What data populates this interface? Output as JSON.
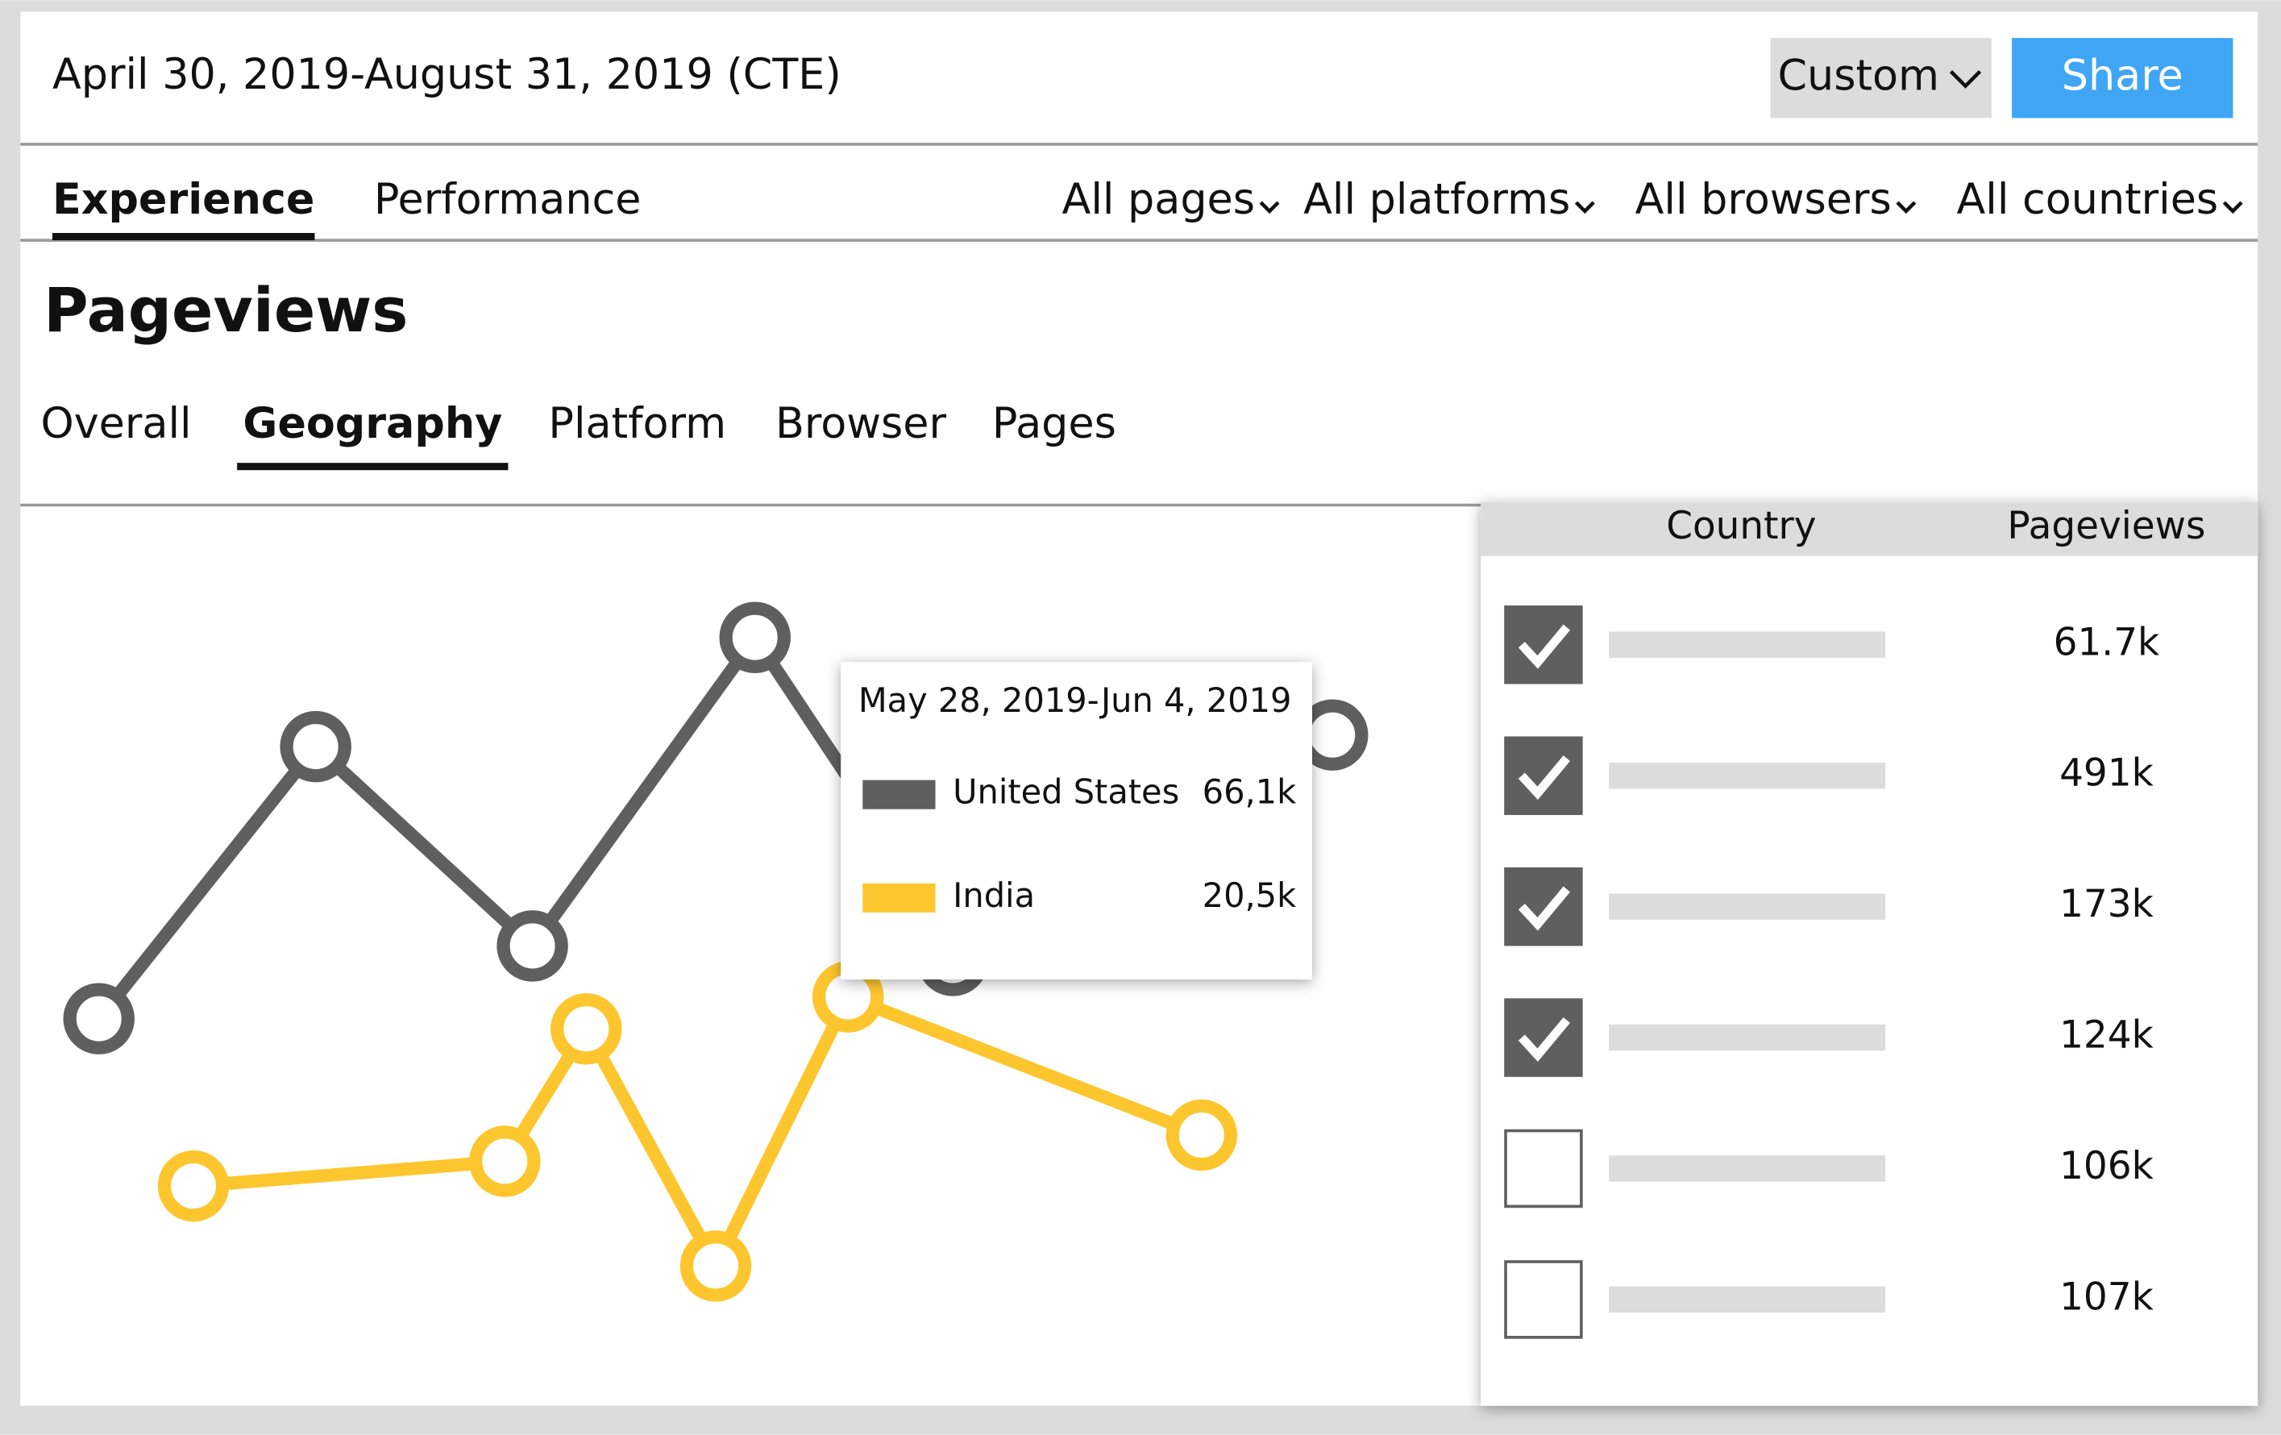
{
  "header": {
    "date_range": "April 30, 2019-August 31, 2019 (CTE)",
    "range_select": "Custom",
    "share": "Share"
  },
  "tabs": {
    "items": [
      "Experience",
      "Performance"
    ],
    "active": 0
  },
  "filters": [
    "All pages",
    "All platforms",
    "All browsers",
    "All countries"
  ],
  "section_title": "Pageviews",
  "subtabs": {
    "items": [
      "Overall",
      "Geography",
      "Platform",
      "Browser",
      "Pages"
    ],
    "active": 1
  },
  "tooltip": {
    "date": "May 28, 2019-Jun 4, 2019",
    "rows": [
      {
        "name": "United States",
        "value": "66,1k",
        "color": "#5f5f5f"
      },
      {
        "name": "India",
        "value": "20,5k",
        "color": "#fec62e"
      }
    ]
  },
  "table": {
    "headers": [
      "Country",
      "Pageviews"
    ],
    "rows": [
      {
        "checked": true,
        "pageviews": "61.7k"
      },
      {
        "checked": true,
        "pageviews": "491k"
      },
      {
        "checked": true,
        "pageviews": "173k"
      },
      {
        "checked": true,
        "pageviews": "124k"
      },
      {
        "checked": false,
        "pageviews": "106k"
      },
      {
        "checked": false,
        "pageviews": "107k"
      }
    ]
  }
}
